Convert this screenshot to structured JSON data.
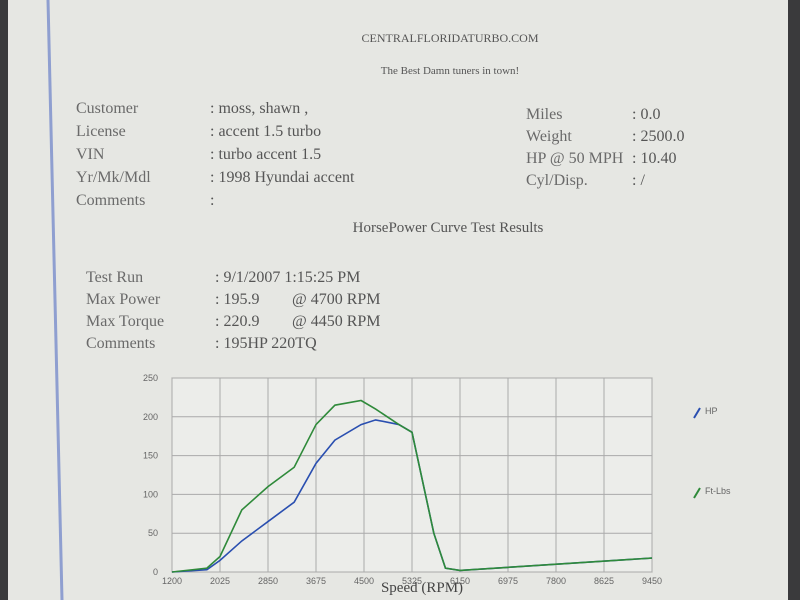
{
  "header": {
    "site": "CENTRALFLORIDATURBO.COM",
    "tagline": "The Best Damn tuners in town!"
  },
  "vehicle": {
    "rows": [
      [
        "Customer",
        ": moss, shawn ,"
      ],
      [
        "License",
        ": accent 1.5 turbo"
      ],
      [
        "VIN",
        ": turbo accent 1.5"
      ],
      [
        "Yr/Mk/Mdl",
        ": 1998 Hyundai accent"
      ],
      [
        "Comments",
        ":"
      ]
    ]
  },
  "specs": {
    "rows": [
      [
        "Miles",
        ": 0.0"
      ],
      [
        "Weight",
        ": 2500.0"
      ],
      [
        "HP @ 50 MPH",
        ": 10.40"
      ],
      [
        "Cyl/Disp.",
        ": /"
      ]
    ]
  },
  "section_title": "HorsePower Curve Test Results",
  "test": {
    "rows": [
      [
        "Test Run",
        ": 9/1/2007 1:15:25 PM"
      ],
      [
        "Max Power",
        ": 195.9",
        "@ 4700  RPM"
      ],
      [
        "Max Torque",
        ": 220.9",
        "@ 4450  RPM"
      ],
      [
        "Comments",
        ": 195HP  220TQ"
      ]
    ]
  },
  "chart_data": {
    "type": "line",
    "x_label": "Speed (RPM)",
    "x": [
      1200,
      1800,
      2025,
      2400,
      2850,
      3300,
      3675,
      4000,
      4450,
      4700,
      5100,
      5325,
      5700,
      5900,
      6150,
      9450
    ],
    "series": [
      {
        "name": "HP",
        "color": "#2a4fb0",
        "values": [
          0,
          3,
          15,
          40,
          65,
          90,
          140,
          170,
          190,
          196,
          190,
          180,
          50,
          5,
          2,
          18
        ]
      },
      {
        "name": "Ft-Lbs",
        "color": "#2f8a3a",
        "values": [
          0,
          5,
          20,
          80,
          110,
          135,
          190,
          215,
          221,
          210,
          190,
          180,
          50,
          5,
          2,
          18
        ]
      }
    ],
    "xlim": [
      1200,
      9450
    ],
    "xticks": [
      1200,
      2025,
      2850,
      3675,
      4500,
      5325,
      6150,
      6975,
      7800,
      8625,
      9450
    ],
    "ylim": [
      0,
      250
    ],
    "yticks": [
      0,
      50,
      100,
      150,
      200,
      250
    ],
    "grid": true
  }
}
